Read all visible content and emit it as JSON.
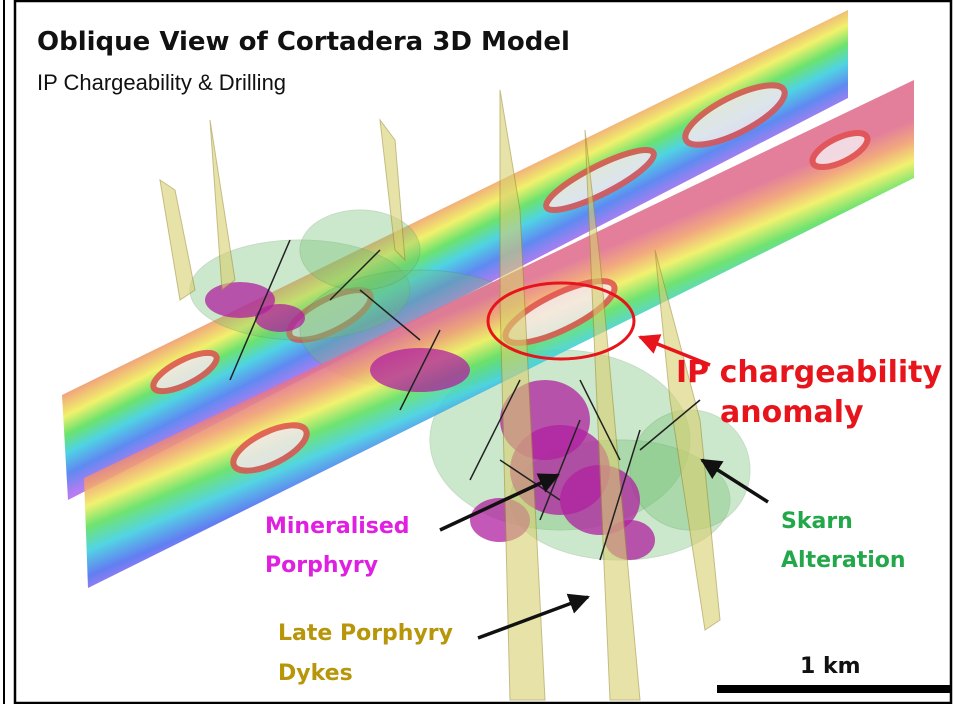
{
  "title": "Oblique View of Cortadera 3D Model",
  "subtitle": "IP Chargeability & Drilling",
  "annotations": [
    {
      "lines": [
        "IP chargeability",
        "anomaly"
      ]
    },
    {
      "lines": [
        "Mineralised",
        "Porphyry"
      ]
    },
    {
      "lines": [
        "Skarn",
        "Alteration"
      ]
    },
    {
      "lines": [
        "Late Porphyry",
        "Dykes"
      ]
    }
  ],
  "scale_bar": {
    "label": "1 km"
  }
}
